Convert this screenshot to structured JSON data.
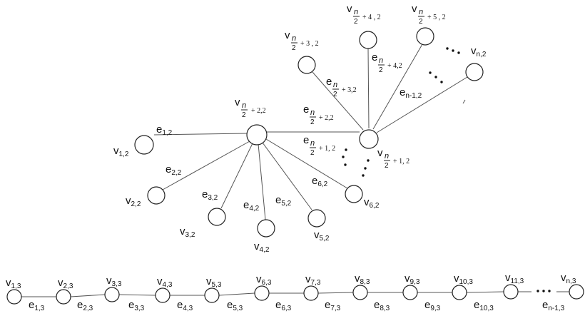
{
  "graph": {
    "nodes": {
      "hub_left": {
        "parts": [
          "v",
          "n",
          "2",
          "+ 2,2"
        ]
      },
      "hub_right": {
        "parts": [
          "v",
          "n",
          "2",
          "+ 1, 2"
        ]
      },
      "v12": {
        "main": "v",
        "sub": "1,2"
      },
      "v22": {
        "main": "v",
        "sub": "2,2"
      },
      "v32": {
        "main": "v",
        "sub": "3,2"
      },
      "v42": {
        "main": "v",
        "sub": "4,2"
      },
      "v52": {
        "main": "v",
        "sub": "5,2"
      },
      "v62": {
        "main": "v",
        "sub": "6,2"
      },
      "vn3_2": {
        "parts": [
          "v",
          "n",
          "2",
          "+ 3 , 2"
        ]
      },
      "vn4_2": {
        "parts": [
          "v",
          "n",
          "2",
          "+ 4 , 2"
        ]
      },
      "vn5_2": {
        "parts": [
          "v",
          "n",
          "2",
          "+ 5 , 2"
        ]
      },
      "vn2": {
        "main": "v",
        "sub": "n,2"
      }
    },
    "edges": {
      "e12": {
        "main": "e",
        "sub": "1,2"
      },
      "e22": {
        "main": "e",
        "sub": "2,2"
      },
      "e32": {
        "main": "e",
        "sub": "3,2"
      },
      "e42": {
        "main": "e",
        "sub": "4,2"
      },
      "e52": {
        "main": "e",
        "sub": "5,2"
      },
      "e62": {
        "main": "e",
        "sub": "6,2"
      },
      "e_n1": {
        "parts": [
          "e",
          "n",
          "2",
          "+ 1, 2"
        ]
      },
      "e_n2": {
        "parts": [
          "e",
          "n",
          "2",
          "+ 2,2"
        ]
      },
      "e_n3": {
        "parts": [
          "e",
          "n",
          "2",
          "+ 3,2"
        ]
      },
      "e_n4": {
        "parts": [
          "e",
          "n",
          "2",
          "+ 4,2"
        ]
      },
      "en1_2": {
        "main": "e",
        "sub": "n-1,2"
      }
    },
    "path_nodes": [
      "1,3",
      "2,3",
      "3,3",
      "4,3",
      "5,3",
      "6,3",
      "7,3",
      "8,3",
      "9,3",
      "10,3",
      "11,3",
      "n,3"
    ],
    "path_edges": [
      "1,3",
      "2,3",
      "3,3",
      "4,3",
      "5,3",
      "6,3",
      "7,3",
      "8,3",
      "9,3",
      "10,3",
      "n-1,3"
    ],
    "path_node_letter": "v",
    "path_edge_letter": "e"
  }
}
